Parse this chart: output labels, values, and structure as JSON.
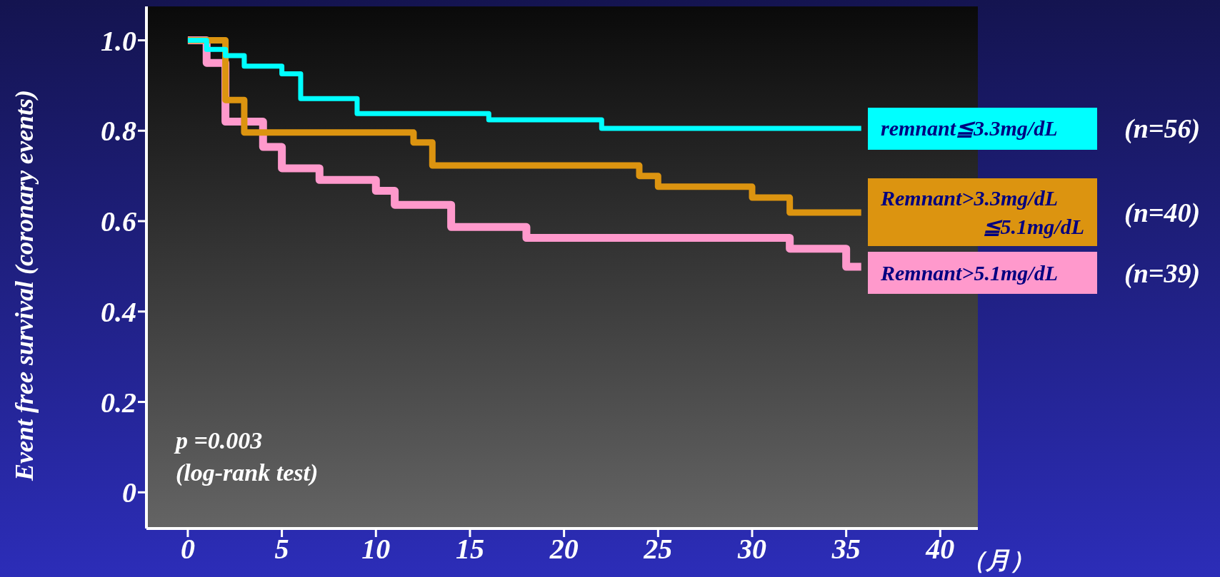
{
  "chart_data": {
    "type": "step",
    "ylabel": "Event free survival (coronary events)",
    "xlabel": "（月）",
    "xlim": [
      -2.2,
      42
    ],
    "ylim": [
      -0.08,
      1.075
    ],
    "xticks": [
      0,
      5,
      10,
      15,
      20,
      25,
      30,
      35,
      40
    ],
    "yticks": [
      0,
      0.2,
      0.4,
      0.6,
      {
        "value": 0.8,
        "label": "0.8"
      },
      {
        "value": 1,
        "label": "1.0"
      }
    ],
    "marker": "none",
    "legend": "right",
    "series": [
      {
        "name": "remnant≦3.3mg/dL",
        "color": "#00ffff",
        "x": [
          0,
          1,
          2,
          3,
          5,
          6,
          9,
          16,
          22,
          35.8
        ],
        "values": [
          1,
          0.98,
          0.966,
          0.943,
          0.926,
          0.871,
          0.838,
          0.824,
          0.805,
          0.805
        ]
      },
      {
        "name": "Remnant>3.3mg/dL ≦5.1mg/dL",
        "color": "#dc9410",
        "x": [
          0,
          2,
          3,
          12,
          13,
          24,
          25,
          30,
          32,
          35.8
        ],
        "values": [
          1,
          0.868,
          0.796,
          0.774,
          0.723,
          0.7,
          0.676,
          0.652,
          0.619,
          0.619
        ]
      },
      {
        "name": "Remnant>5.1mg/dL",
        "color": "#ff99cc",
        "x": [
          0,
          1,
          2,
          4,
          5,
          7,
          10,
          11,
          14,
          18,
          32,
          35,
          35.8
        ],
        "values": [
          1,
          0.95,
          0.82,
          0.764,
          0.717,
          0.691,
          0.667,
          0.636,
          0.587,
          0.563,
          0.539,
          0.499,
          0.499
        ]
      }
    ],
    "annotations": [
      "p =0.003",
      "(log-rank test)",
      "(n=56)",
      "(n=40)",
      "(n=39)"
    ]
  }
}
